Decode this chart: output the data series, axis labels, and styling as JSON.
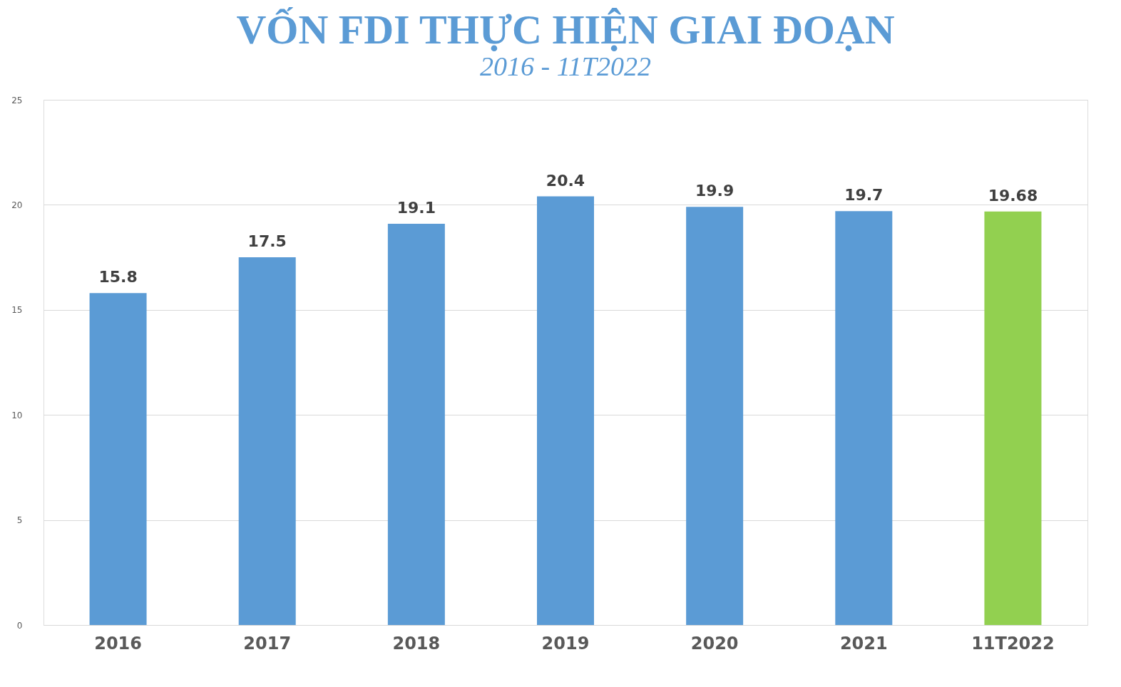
{
  "chart_data": {
    "type": "bar",
    "title": "VỐN FDI THỰC HIỆN GIAI ĐOẠN",
    "subtitle": "2016 - 11T2022",
    "categories": [
      "2016",
      "2017",
      "2018",
      "2019",
      "2020",
      "2021",
      "11T2022"
    ],
    "values": [
      15.8,
      17.5,
      19.1,
      20.4,
      19.9,
      19.7,
      19.68
    ],
    "colors": [
      "#5b9bd5",
      "#5b9bd5",
      "#5b9bd5",
      "#5b9bd5",
      "#5b9bd5",
      "#5b9bd5",
      "#92d050"
    ],
    "ylim": [
      0,
      25
    ],
    "yticks": [
      0,
      5,
      10,
      15,
      20,
      25
    ],
    "grid": "y",
    "data_labels": true
  }
}
